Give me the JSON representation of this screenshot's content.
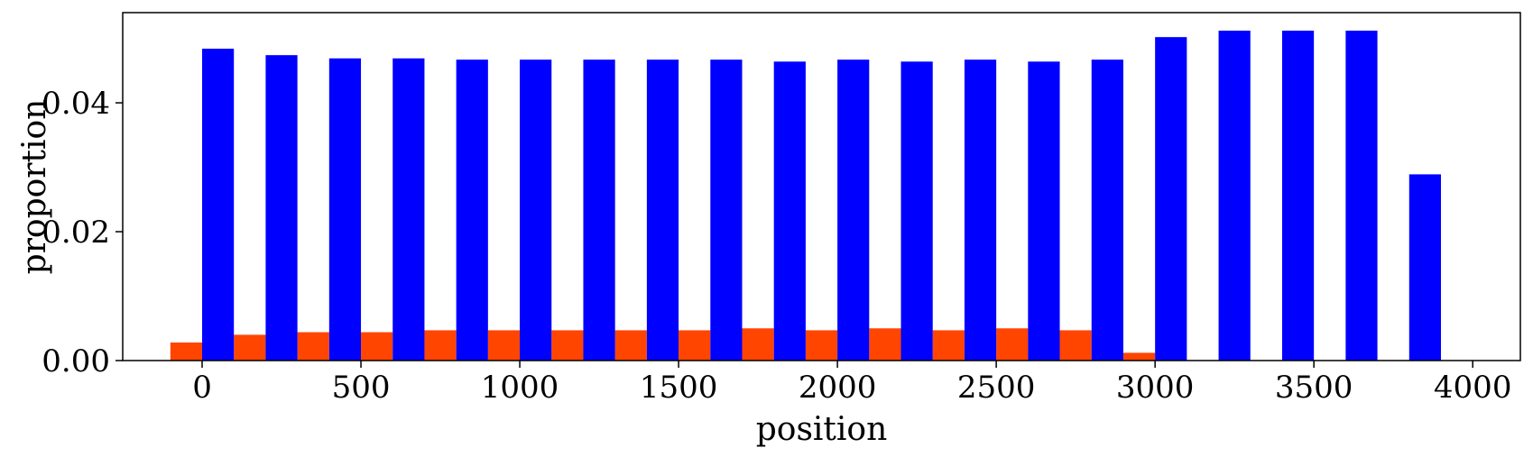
{
  "chart_data": {
    "type": "bar",
    "xlabel": "position",
    "ylabel": "proportion",
    "xlim": [
      -250,
      4150
    ],
    "ylim": [
      0,
      0.054
    ],
    "bin_width": 200,
    "x_ticks": [
      0,
      500,
      1000,
      1500,
      2000,
      2500,
      3000,
      3500,
      4000
    ],
    "x_tick_labels": [
      "0",
      "500",
      "1000",
      "1500",
      "2000",
      "2500",
      "3000",
      "3500",
      "4000"
    ],
    "y_ticks": [
      0,
      0.02,
      0.04
    ],
    "y_tick_labels": [
      "0.00",
      "0.02",
      "0.04"
    ],
    "grid": false,
    "series": [
      {
        "color": "#FF4500",
        "x": [
          -50,
          150,
          350,
          550,
          750,
          950,
          1150,
          1350,
          1550,
          1750,
          1950,
          2150,
          2350,
          2550,
          2750,
          2950
        ],
        "values": [
          0.0028,
          0.004,
          0.0044,
          0.0044,
          0.0047,
          0.0047,
          0.0047,
          0.0047,
          0.0047,
          0.005,
          0.0047,
          0.005,
          0.0047,
          0.005,
          0.0047,
          0.0012
        ]
      },
      {
        "color": "#0000FF",
        "x": [
          50,
          250,
          450,
          650,
          850,
          1050,
          1250,
          1450,
          1650,
          1850,
          2050,
          2250,
          2450,
          2650,
          2850,
          3050,
          3250,
          3450,
          3650,
          3850
        ],
        "values": [
          0.0484,
          0.0474,
          0.0469,
          0.0469,
          0.0467,
          0.0467,
          0.0467,
          0.0467,
          0.0467,
          0.0464,
          0.0467,
          0.0464,
          0.0467,
          0.0464,
          0.0467,
          0.0502,
          0.0512,
          0.0512,
          0.0512,
          0.0289
        ]
      }
    ]
  }
}
